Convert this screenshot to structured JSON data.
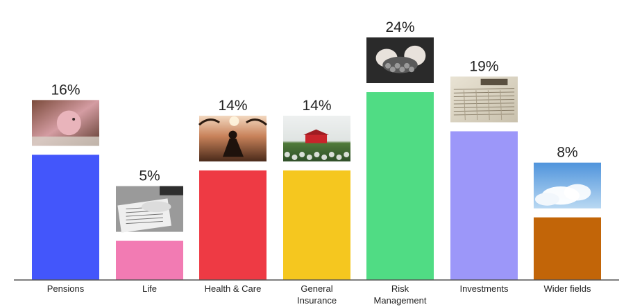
{
  "chart_data": {
    "type": "bar",
    "categories": [
      [
        "Pensions"
      ],
      [
        "Life"
      ],
      [
        "Health & Care"
      ],
      [
        "General",
        "Insurance"
      ],
      [
        "Risk",
        "Management"
      ],
      [
        "Investments"
      ],
      [
        "Wider fields"
      ]
    ],
    "values": [
      16,
      5,
      14,
      14,
      24,
      19,
      8
    ],
    "value_labels": [
      "16%",
      "5%",
      "14%",
      "14%",
      "24%",
      "19%",
      "8%"
    ],
    "colors": [
      "#4356fb",
      "#f27bb3",
      "#ee3a44",
      "#f5c71f",
      "#50dc84",
      "#9c97f9",
      "#c26508"
    ],
    "images": [
      "piggy-bank-photo",
      "signing-document-photo",
      "yoga-silhouette-photo",
      "red-house-field-photo",
      "hands-over-coins-photo",
      "newspaper-photo",
      "sky-clouds-photo"
    ],
    "ylim": [
      0,
      24
    ],
    "grid": false,
    "legend": "none"
  }
}
